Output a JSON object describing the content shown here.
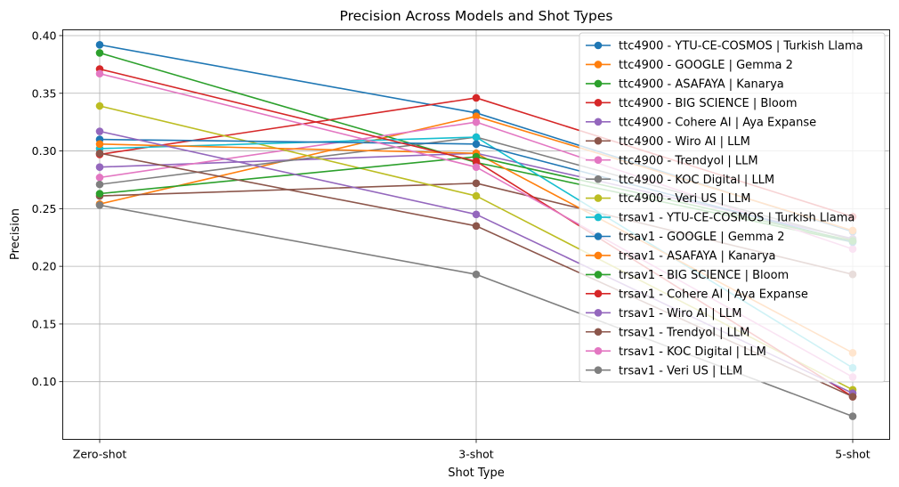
{
  "chart_data": {
    "type": "line",
    "title": "Precision Across Models and Shot Types",
    "xlabel": "Shot Type",
    "ylabel": "Precision",
    "categories": [
      "Zero-shot",
      "3-shot",
      "5-shot"
    ],
    "ylim": [
      0.05,
      0.405
    ],
    "yticks": [
      0.1,
      0.15,
      0.2,
      0.25,
      0.3,
      0.35,
      0.4
    ],
    "ytick_labels": [
      "0.10",
      "0.15",
      "0.20",
      "0.25",
      "0.30",
      "0.35",
      "0.40"
    ],
    "grid": true,
    "legend_position": "top-right",
    "series": [
      {
        "name": "ttc4900 - YTU-CE-COSMOS | Turkish Llama",
        "color": "#1f77b4",
        "values": [
          0.392,
          0.333,
          0.23
        ]
      },
      {
        "name": "ttc4900 - GOOGLE | Gemma 2",
        "color": "#ff7f0e",
        "values": [
          0.254,
          0.33,
          0.231
        ]
      },
      {
        "name": "ttc4900 - ASAFAYA | Kanarya",
        "color": "#2ca02c",
        "values": [
          0.385,
          0.29,
          0.221
        ]
      },
      {
        "name": "ttc4900 - BIG SCIENCE | Bloom",
        "color": "#d62728",
        "values": [
          0.297,
          0.346,
          0.243
        ]
      },
      {
        "name": "ttc4900 - Cohere AI | Aya Expanse",
        "color": "#9467bd",
        "values": [
          0.286,
          0.298,
          0.224
        ]
      },
      {
        "name": "ttc4900 - Wiro AI | LLM",
        "color": "#8c564b",
        "values": [
          0.261,
          0.272,
          0.193
        ]
      },
      {
        "name": "ttc4900 - Trendyol | LLM",
        "color": "#e377c2",
        "values": [
          0.277,
          0.325,
          0.215
        ]
      },
      {
        "name": "ttc4900 - KOC Digital | LLM",
        "color": "#7f7f7f",
        "values": [
          0.271,
          0.312,
          0.223
        ]
      },
      {
        "name": "ttc4900 - Veri US | LLM",
        "color": "#bcbd22",
        "values": [
          0.339,
          0.261,
          0.093
        ]
      },
      {
        "name": "trsav1 - YTU-CE-COSMOS | Turkish Llama",
        "color": "#17becf",
        "values": [
          0.302,
          0.312,
          0.112
        ]
      },
      {
        "name": "trsav1 - GOOGLE | Gemma 2",
        "color": "#1f77b4",
        "values": [
          0.31,
          0.306,
          0.221
        ]
      },
      {
        "name": "trsav1 - ASAFAYA | Kanarya",
        "color": "#ff7f0e",
        "values": [
          0.306,
          0.298,
          0.125
        ]
      },
      {
        "name": "trsav1 - BIG SCIENCE | Bloom",
        "color": "#2ca02c",
        "values": [
          0.263,
          0.295,
          0.222
        ]
      },
      {
        "name": "trsav1 - Cohere AI | Aya Expanse",
        "color": "#d62728",
        "values": [
          0.371,
          0.291,
          0.087
        ]
      },
      {
        "name": "trsav1 - Wiro AI | LLM",
        "color": "#9467bd",
        "values": [
          0.317,
          0.245,
          0.09
        ]
      },
      {
        "name": "trsav1 - Trendyol | LLM",
        "color": "#8c564b",
        "values": [
          0.298,
          0.235,
          0.087
        ]
      },
      {
        "name": "trsav1 - KOC Digital | LLM",
        "color": "#e377c2",
        "values": [
          0.367,
          0.286,
          0.104
        ]
      },
      {
        "name": "trsav1 - Veri US | LLM",
        "color": "#7f7f7f",
        "values": [
          0.253,
          0.193,
          0.07
        ]
      }
    ]
  }
}
